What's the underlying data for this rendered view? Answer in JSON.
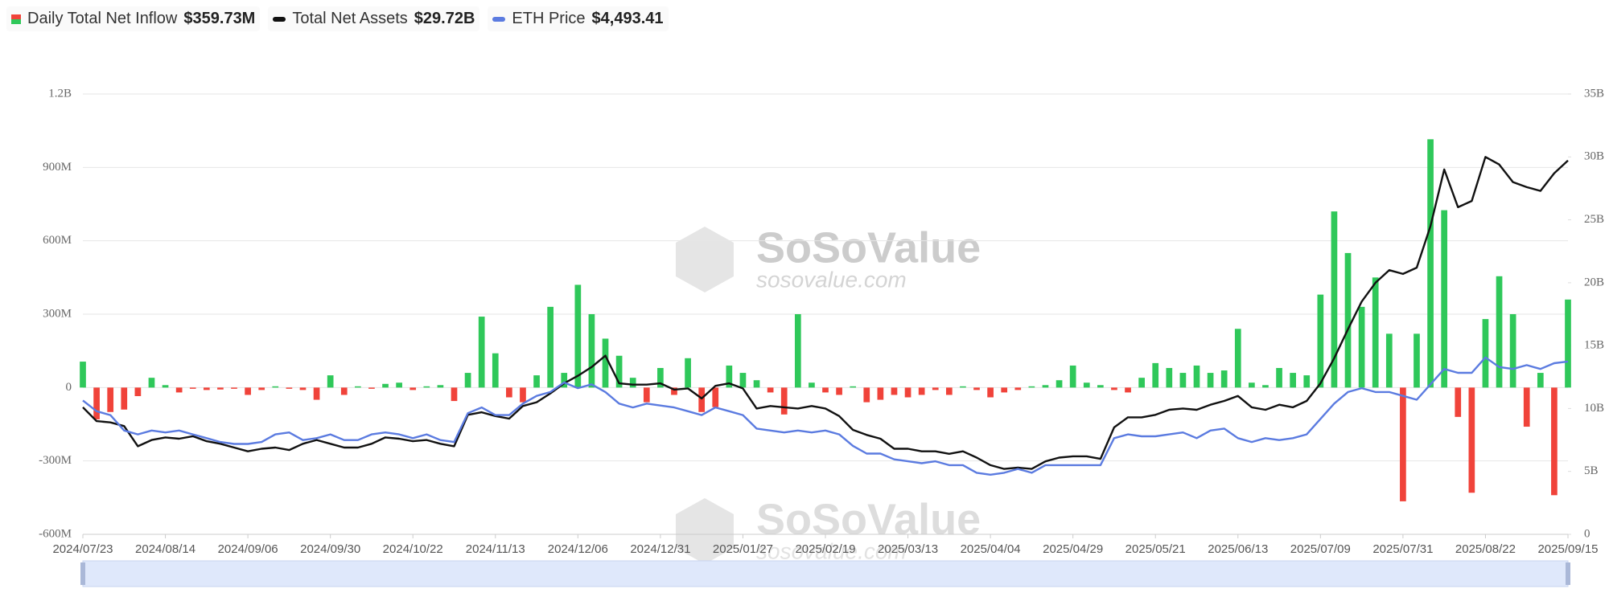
{
  "chart_data": {
    "type": "bar",
    "legend_values": [
      "$359.73M",
      "$29.72B",
      "$4,493.41"
    ],
    "watermark": {
      "brand": "SoSoValue",
      "site": "sosovalue.com"
    },
    "categories": [
      "2024/07/23",
      null,
      null,
      null,
      null,
      null,
      "2024/08/14",
      null,
      null,
      null,
      null,
      null,
      "2024/09/06",
      null,
      null,
      null,
      null,
      null,
      "2024/09/30",
      null,
      null,
      null,
      null,
      null,
      "2024/10/22",
      null,
      null,
      null,
      null,
      null,
      "2024/11/13",
      null,
      null,
      null,
      null,
      null,
      "2024/12/06",
      null,
      null,
      null,
      null,
      null,
      "2024/12/31",
      null,
      null,
      null,
      null,
      null,
      "2025/01/27",
      null,
      null,
      null,
      null,
      null,
      "2025/02/19",
      null,
      null,
      null,
      null,
      null,
      "2025/03/13",
      null,
      null,
      null,
      null,
      null,
      "2025/04/04",
      null,
      null,
      null,
      null,
      null,
      "2025/04/29",
      null,
      null,
      null,
      null,
      null,
      "2025/05/21",
      null,
      null,
      null,
      null,
      null,
      "2025/06/13",
      null,
      null,
      null,
      null,
      null,
      "2025/07/09",
      null,
      null,
      null,
      null,
      null,
      "2025/07/31",
      null,
      null,
      null,
      null,
      null,
      "2025/08/22",
      null,
      null,
      null,
      null,
      null,
      "2025/09/15"
    ],
    "series": [
      {
        "name": "Daily Total Net Inflow",
        "type": "bar",
        "color": "#2fc85a",
        "negative_color": "#f0433a",
        "values": [
          106,
          -130,
          -100,
          -90,
          -35,
          40,
          10,
          -20,
          -5,
          -10,
          -8,
          -5,
          -30,
          -10,
          5,
          -5,
          -10,
          -50,
          50,
          -30,
          5,
          -5,
          15,
          20,
          -10,
          5,
          10,
          -55,
          60,
          290,
          140,
          -40,
          -60,
          50,
          330,
          60,
          420,
          300,
          200,
          130,
          40,
          -60,
          80,
          -30,
          120,
          -100,
          -80,
          90,
          60,
          30,
          -20,
          -110,
          300,
          20,
          -20,
          -30,
          5,
          -60,
          -50,
          -30,
          -40,
          -30,
          -10,
          -30,
          5,
          -10,
          -40,
          -20,
          -10,
          5,
          10,
          30,
          90,
          20,
          10,
          -10,
          -20,
          40,
          100,
          80,
          60,
          90,
          60,
          70,
          240,
          20,
          10,
          80,
          60,
          50,
          380,
          720,
          550,
          330,
          450,
          220,
          -465,
          220,
          1015,
          725,
          -120,
          -430,
          280,
          455,
          300,
          -160,
          60,
          -440,
          359.73
        ]
      },
      {
        "name": "Total Net Assets",
        "type": "line",
        "axis": "y2",
        "color": "#111111",
        "values": [
          10.1,
          9.0,
          8.9,
          8.6,
          7.0,
          7.5,
          7.7,
          7.6,
          7.8,
          7.4,
          7.2,
          6.9,
          6.6,
          6.8,
          6.9,
          6.7,
          7.2,
          7.5,
          7.2,
          6.9,
          6.9,
          7.2,
          7.7,
          7.6,
          7.4,
          7.5,
          7.2,
          7.0,
          9.5,
          9.7,
          9.4,
          9.2,
          10.2,
          10.5,
          11.2,
          12.0,
          12.6,
          13.3,
          14.2,
          12.0,
          11.9,
          11.9,
          12.0,
          11.5,
          11.6,
          10.8,
          11.8,
          12.0,
          11.6,
          10.0,
          10.2,
          10.1,
          10.0,
          10.2,
          10.0,
          9.4,
          8.3,
          7.9,
          7.6,
          6.8,
          6.8,
          6.6,
          6.6,
          6.4,
          6.6,
          6.1,
          5.5,
          5.2,
          5.3,
          5.2,
          5.8,
          6.1,
          6.2,
          6.2,
          6.0,
          8.5,
          9.3,
          9.3,
          9.5,
          9.9,
          10.0,
          9.9,
          10.3,
          10.6,
          11.0,
          10.1,
          9.9,
          10.3,
          10.1,
          10.6,
          12.0,
          14.0,
          16.3,
          18.5,
          20.0,
          21.0,
          20.7,
          21.2,
          24.5,
          29.0,
          26.0,
          26.5,
          30.0,
          29.4,
          28.0,
          27.6,
          27.3,
          28.7,
          29.72
        ]
      },
      {
        "name": "ETH Price",
        "type": "line",
        "axis": "y3",
        "color": "#5b7be0",
        "values": [
          3480,
          3200,
          3100,
          2700,
          2600,
          2700,
          2650,
          2700,
          2600,
          2500,
          2400,
          2350,
          2350,
          2400,
          2600,
          2650,
          2450,
          2500,
          2600,
          2450,
          2450,
          2600,
          2650,
          2600,
          2500,
          2600,
          2450,
          2400,
          3150,
          3300,
          3100,
          3100,
          3400,
          3600,
          3700,
          3950,
          3800,
          3900,
          3700,
          3400,
          3300,
          3400,
          3350,
          3300,
          3200,
          3100,
          3300,
          3200,
          3100,
          2750,
          2700,
          2650,
          2700,
          2650,
          2700,
          2600,
          2300,
          2100,
          2100,
          1950,
          1900,
          1850,
          1900,
          1800,
          1800,
          1600,
          1550,
          1600,
          1700,
          1600,
          1800,
          1800,
          1800,
          1800,
          1800,
          2500,
          2600,
          2550,
          2550,
          2600,
          2650,
          2500,
          2700,
          2750,
          2500,
          2400,
          2500,
          2450,
          2500,
          2600,
          3000,
          3400,
          3700,
          3800,
          3700,
          3700,
          3600,
          3500,
          3900,
          4300,
          4200,
          4200,
          4600,
          4350,
          4300,
          4400,
          4300,
          4450,
          4493.41
        ]
      }
    ],
    "ylim": [
      -600,
      1200
    ],
    "yticks": [
      {
        "value": -600,
        "label": "-600M"
      },
      {
        "value": -300,
        "label": "-300M"
      },
      0,
      {
        "value": 300,
        "label": "300M"
      },
      {
        "value": 600,
        "label": "600M"
      },
      {
        "value": 900,
        "label": "900M"
      },
      {
        "value": 1200,
        "label": "1.2B"
      }
    ],
    "y2lim": [
      0,
      35
    ],
    "y2ticks": [
      0,
      {
        "value": 5,
        "label": "5B"
      },
      {
        "value": 10,
        "label": "10B"
      },
      {
        "value": 15,
        "label": "15B"
      },
      {
        "value": 20,
        "label": "20B"
      },
      {
        "value": 25,
        "label": "25B"
      },
      {
        "value": 30,
        "label": "30B"
      },
      {
        "value": 35,
        "label": "35B"
      }
    ],
    "y3lim": [
      0,
      11450
    ],
    "grid": true
  }
}
